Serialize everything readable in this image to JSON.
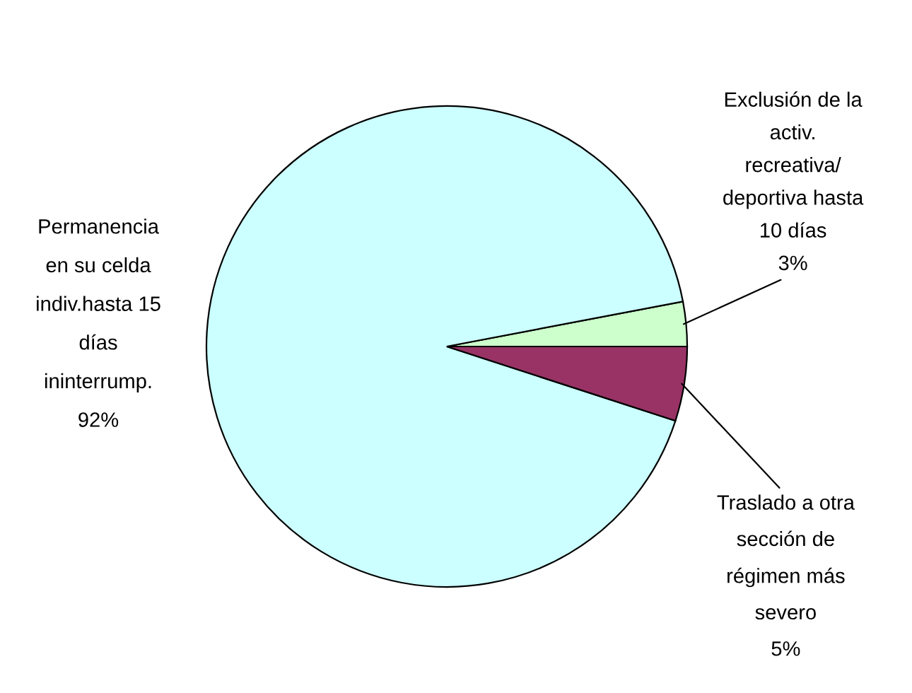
{
  "chart_data": {
    "type": "pie",
    "categories": [
      "Exclusión de la\nactiv.\nrecreativa/\ndeportiva hasta\n10 días",
      "Permanencia\nen su celda\nindiv.hasta 15\ndías\nininterrump.",
      "Traslado a otra\nsección de\nrégimen más\nsevero"
    ],
    "values": [
      3,
      92,
      5
    ],
    "colors": [
      "#ccffcc",
      "#ccffff",
      "#993366"
    ],
    "value_labels": [
      "3%",
      "92%",
      "5%"
    ]
  }
}
